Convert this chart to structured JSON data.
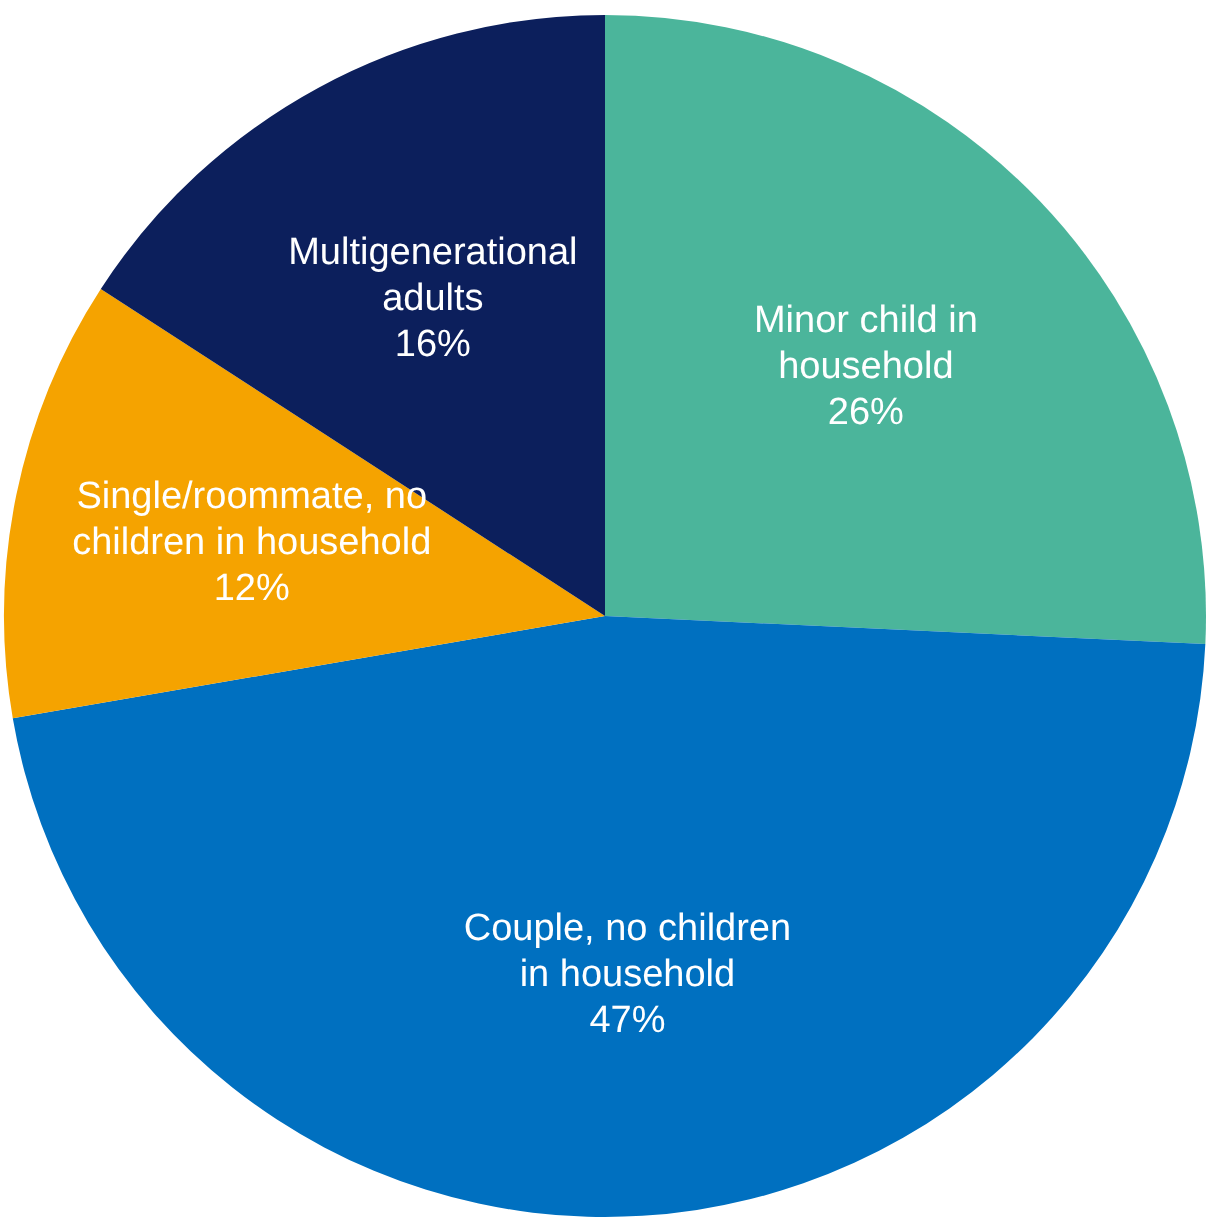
{
  "chart_data": {
    "type": "pie",
    "categories": [
      "Minor child in household",
      "Couple, no children in household",
      "Single/roommate, no children in household",
      "Multigenerational adults"
    ],
    "values": [
      26,
      47,
      12,
      16
    ],
    "value_labels": [
      "26%",
      "47%",
      "12%",
      "16%"
    ],
    "colors": [
      "#4bb59b",
      "#0070c0",
      "#f5a300",
      "#0c1f5c"
    ],
    "legend": false
  }
}
